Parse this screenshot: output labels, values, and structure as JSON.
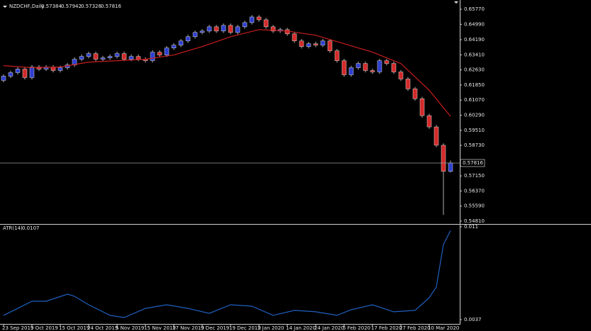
{
  "chart_data": [
    {
      "type": "candlestick",
      "title": "NZDCHF,Daily",
      "open": [
        0.62088,
        0.62307,
        0.6249,
        0.62672,
        0.62234,
        0.62781,
        0.62672,
        0.62781,
        0.62599,
        0.62745,
        0.6289,
        0.63182,
        0.63328,
        0.63474,
        0.63182,
        0.63255,
        0.63328,
        0.63474,
        0.63182,
        0.63328,
        0.63182,
        0.63109,
        0.63547,
        0.63401,
        0.63765,
        0.63911,
        0.6413,
        0.64348,
        0.64567,
        0.6464,
        0.64859,
        0.6464,
        0.64932,
        0.64567,
        0.64859,
        0.65077,
        0.65369,
        0.65223,
        0.64859,
        0.6464,
        0.64713,
        0.64494,
        0.6413,
        0.63838,
        0.63984,
        0.63911,
        0.6413,
        0.63619,
        0.63109,
        0.6238,
        0.62745,
        0.62963,
        0.62599,
        0.62526,
        0.63109,
        0.62963,
        0.62526,
        0.62161,
        0.61651,
        0.61141,
        0.60266,
        0.59683,
        0.58735,
        0.57384
      ],
      "high": [
        0.62407,
        0.6259,
        0.62772,
        0.62772,
        0.62881,
        0.62881,
        0.62881,
        0.62881,
        0.62845,
        0.6299,
        0.63282,
        0.63428,
        0.63574,
        0.63574,
        0.63355,
        0.63428,
        0.63574,
        0.63574,
        0.63428,
        0.63428,
        0.63282,
        0.63647,
        0.63647,
        0.63865,
        0.64011,
        0.6423,
        0.64448,
        0.64667,
        0.6474,
        0.64959,
        0.64959,
        0.65032,
        0.65032,
        0.64959,
        0.65177,
        0.65469,
        0.65469,
        0.65323,
        0.64959,
        0.64813,
        0.64813,
        0.64594,
        0.6423,
        0.64084,
        0.64084,
        0.6423,
        0.6423,
        0.63719,
        0.63209,
        0.62845,
        0.63063,
        0.63063,
        0.62699,
        0.63209,
        0.63209,
        0.63063,
        0.62626,
        0.62261,
        0.61751,
        0.61241,
        0.60366,
        0.59783,
        0.58835,
        0.57942
      ],
      "low": [
        0.61988,
        0.62207,
        0.6239,
        0.62134,
        0.62134,
        0.62572,
        0.62572,
        0.62499,
        0.62499,
        0.62645,
        0.6279,
        0.63082,
        0.63228,
        0.63082,
        0.63082,
        0.63155,
        0.63228,
        0.63082,
        0.63082,
        0.63082,
        0.63009,
        0.63009,
        0.63301,
        0.63301,
        0.63665,
        0.63811,
        0.6403,
        0.64248,
        0.64467,
        0.6454,
        0.6454,
        0.6454,
        0.64467,
        0.64467,
        0.64759,
        0.64977,
        0.65123,
        0.64759,
        0.6454,
        0.6454,
        0.64394,
        0.6403,
        0.63738,
        0.63738,
        0.63811,
        0.63811,
        0.63519,
        0.63009,
        0.6228,
        0.6228,
        0.62645,
        0.62499,
        0.62426,
        0.62426,
        0.62863,
        0.62426,
        0.62061,
        0.61551,
        0.61041,
        0.60166,
        0.59583,
        0.58635,
        0.5513,
        0.57326
      ],
      "close": [
        0.62307,
        0.6249,
        0.62672,
        0.62234,
        0.62781,
        0.62672,
        0.62781,
        0.62599,
        0.62745,
        0.6289,
        0.63182,
        0.63328,
        0.63474,
        0.63182,
        0.63255,
        0.63328,
        0.63474,
        0.63182,
        0.63328,
        0.63182,
        0.63109,
        0.63547,
        0.63401,
        0.63765,
        0.63911,
        0.6413,
        0.64348,
        0.64567,
        0.6464,
        0.64859,
        0.6464,
        0.64932,
        0.64567,
        0.64859,
        0.65077,
        0.65369,
        0.65223,
        0.64859,
        0.6464,
        0.64713,
        0.64494,
        0.6413,
        0.63838,
        0.63984,
        0.63911,
        0.6413,
        0.63619,
        0.63109,
        0.6238,
        0.62745,
        0.62963,
        0.62599,
        0.62526,
        0.63109,
        0.62963,
        0.62526,
        0.62161,
        0.61651,
        0.61141,
        0.60266,
        0.59683,
        0.58735,
        0.57384,
        0.57816
      ],
      "up_color": "#2f3fd0",
      "down_color": "#d42a2a",
      "series": [
        {
          "color": "#c81e1e",
          "x": [
            0,
            4,
            8,
            12,
            16,
            20,
            24,
            28,
            32,
            36,
            40,
            44,
            48,
            52,
            56,
            60,
            63
          ],
          "values": [
            0.62854,
            0.62745,
            0.62781,
            0.63036,
            0.63109,
            0.63182,
            0.63401,
            0.63838,
            0.64348,
            0.64713,
            0.6464,
            0.64421,
            0.63984,
            0.63547,
            0.62963,
            0.61578,
            0.6023
          ]
        }
      ],
      "xlim": [
        -0.5,
        64.3
      ],
      "ylim": [
        0.547,
        0.661
      ],
      "yticks": [
        {
          "value": 0.6577,
          "label": "0.65770"
        },
        {
          "value": 0.6499,
          "label": "0.64990"
        },
        {
          "value": 0.6419,
          "label": "0.64190"
        },
        {
          "value": 0.6341,
          "label": "0.63410"
        },
        {
          "value": 0.6263,
          "label": "0.62630"
        },
        {
          "value": 0.6185,
          "label": "0.61850"
        },
        {
          "value": 0.6107,
          "label": "0.61070"
        },
        {
          "value": 0.6029,
          "label": "0.60290"
        },
        {
          "value": 0.5951,
          "label": "0.59510"
        },
        {
          "value": 0.5873,
          "label": "0.58730"
        },
        {
          "value": 0.5715,
          "label": "0.57150"
        },
        {
          "value": 0.5637,
          "label": "0.56370"
        },
        {
          "value": 0.5559,
          "label": "0.55590"
        },
        {
          "value": 0.5481,
          "label": "0.54810"
        }
      ],
      "xticks": [
        {
          "value": 0,
          "label": "23 Sep 2019"
        },
        {
          "value": 4,
          "label": "3 Oct 2019"
        },
        {
          "value": 8,
          "label": "15 Oct 2019"
        },
        {
          "value": 12,
          "label": "24 Oct 2019"
        },
        {
          "value": 16,
          "label": "5 Nov 2019"
        },
        {
          "value": 20,
          "label": "15 Nov 2019"
        },
        {
          "value": 24,
          "label": "27 Nov 2019"
        },
        {
          "value": 28,
          "label": "9 Dec 2019"
        },
        {
          "value": 32,
          "label": "19 Dec 2019"
        },
        {
          "value": 36,
          "label": "2 Jan 2020"
        },
        {
          "value": 40,
          "label": "14 Jan 2020"
        },
        {
          "value": 44,
          "label": "24 Jan 2020"
        },
        {
          "value": 48,
          "label": "5 Feb 2020"
        },
        {
          "value": 52,
          "label": "17 Feb 2020"
        },
        {
          "value": 56,
          "label": "27 Feb 2020"
        },
        {
          "value": 60,
          "label": "10 Mar 2020"
        }
      ]
    },
    {
      "type": "line",
      "title": "ATR(14)",
      "series": [
        {
          "color": "#2060c0",
          "x": [
            0,
            2,
            4,
            6,
            9,
            10,
            12,
            15,
            17,
            20,
            23,
            26,
            29,
            32,
            35,
            38,
            41,
            44,
            47,
            49,
            52,
            55,
            58,
            60,
            61,
            62,
            63
          ],
          "values": [
            0.00404,
            0.00459,
            0.00515,
            0.00515,
            0.00571,
            0.00554,
            0.00487,
            0.00404,
            0.00387,
            0.00459,
            0.00487,
            0.00459,
            0.0042,
            0.00487,
            0.00476,
            0.00404,
            0.00443,
            0.00432,
            0.00404,
            0.00448,
            0.00487,
            0.00432,
            0.00443,
            0.00543,
            0.00627,
            0.00961,
            0.0107
          ]
        }
      ],
      "xlim": [
        -0.5,
        64.3
      ],
      "ylim": [
        0.00348,
        0.01111
      ],
      "yticks": [
        0.011,
        0.0037
      ]
    }
  ]
}
